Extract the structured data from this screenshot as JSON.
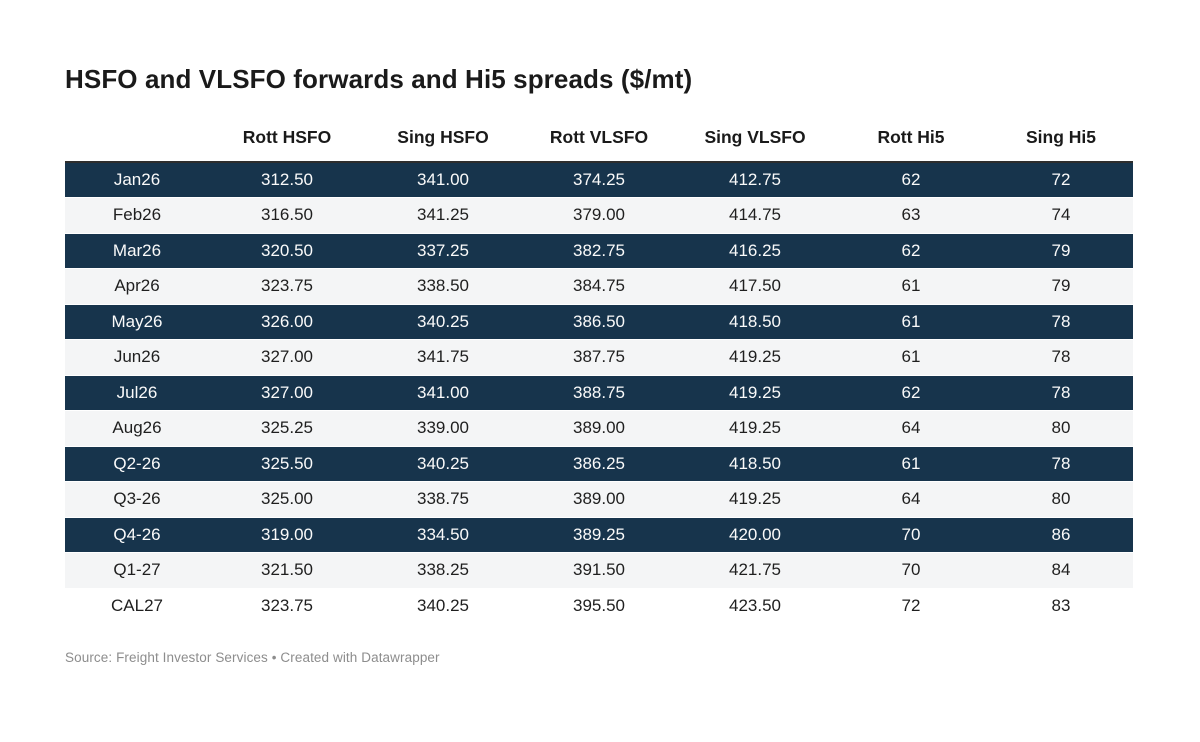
{
  "title": "HSFO and VLSFO forwards and Hi5 spreads ($/mt)",
  "footer": {
    "text": "Source: Freight Investor Services • Created with Datawrapper"
  },
  "colors": {
    "highlight_row_bg": "#17344c",
    "highlight_row_text": "#fafafa",
    "stripe_row_bg": "#f4f5f6",
    "plain_row_bg": "#ffffff",
    "header_rule": "#2e2e2e",
    "title_text": "#1a1a1a",
    "body_text": "#1f1f1f",
    "footer_text": "#8d8d8d"
  },
  "chart_data": {
    "type": "table",
    "title": "HSFO and VLSFO forwards and Hi5 spreads ($/mt)",
    "columns": [
      "",
      "Rott HSFO",
      "Sing HSFO",
      "Rott VLSFO",
      "Sing VLSFO",
      "Rott Hi5",
      "Sing Hi5"
    ],
    "rows": [
      {
        "label": "Jan26",
        "values": [
          "312.50",
          "341.00",
          "374.25",
          "412.75",
          "62",
          "72"
        ],
        "style": "dark"
      },
      {
        "label": "Feb26",
        "values": [
          "316.50",
          "341.25",
          "379.00",
          "414.75",
          "63",
          "74"
        ],
        "style": "stripe"
      },
      {
        "label": "Mar26",
        "values": [
          "320.50",
          "337.25",
          "382.75",
          "416.25",
          "62",
          "79"
        ],
        "style": "dark"
      },
      {
        "label": "Apr26",
        "values": [
          "323.75",
          "338.50",
          "384.75",
          "417.50",
          "61",
          "79"
        ],
        "style": "stripe"
      },
      {
        "label": "May26",
        "values": [
          "326.00",
          "340.25",
          "386.50",
          "418.50",
          "61",
          "78"
        ],
        "style": "dark"
      },
      {
        "label": "Jun26",
        "values": [
          "327.00",
          "341.75",
          "387.75",
          "419.25",
          "61",
          "78"
        ],
        "style": "stripe"
      },
      {
        "label": "Jul26",
        "values": [
          "327.00",
          "341.00",
          "388.75",
          "419.25",
          "62",
          "78"
        ],
        "style": "dark"
      },
      {
        "label": "Aug26",
        "values": [
          "325.25",
          "339.00",
          "389.00",
          "419.25",
          "64",
          "80"
        ],
        "style": "stripe"
      },
      {
        "label": "Q2-26",
        "values": [
          "325.50",
          "340.25",
          "386.25",
          "418.50",
          "61",
          "78"
        ],
        "style": "dark"
      },
      {
        "label": "Q3-26",
        "values": [
          "325.00",
          "338.75",
          "389.00",
          "419.25",
          "64",
          "80"
        ],
        "style": "stripe"
      },
      {
        "label": "Q4-26",
        "values": [
          "319.00",
          "334.50",
          "389.25",
          "420.00",
          "70",
          "86"
        ],
        "style": "dark"
      },
      {
        "label": "Q1-27",
        "values": [
          "321.50",
          "338.25",
          "391.50",
          "421.75",
          "70",
          "84"
        ],
        "style": "stripe"
      },
      {
        "label": "CAL27",
        "values": [
          "323.75",
          "340.25",
          "395.50",
          "423.50",
          "72",
          "83"
        ],
        "style": "plain"
      }
    ]
  }
}
